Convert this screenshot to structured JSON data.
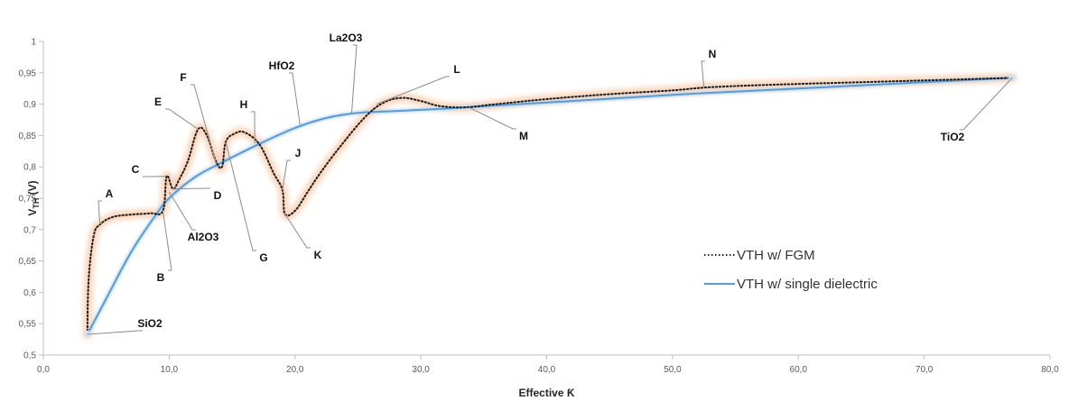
{
  "chart_data": {
    "type": "line",
    "title": "",
    "xlabel": "Effective Ƙ",
    "ylabel_main": "V",
    "ylabel_sub": "TH",
    "ylabel_unit": " (V)",
    "xlim": [
      0,
      80
    ],
    "ylim": [
      0.5,
      1
    ],
    "x_ticks": [
      "0,0",
      "10,0",
      "20,0",
      "30,0",
      "40,0",
      "50,0",
      "60,0",
      "70,0",
      "80,0"
    ],
    "y_ticks": [
      "0,5",
      "0,55",
      "0,6",
      "0,65",
      "0,7",
      "0,75",
      "0,8",
      "0,85",
      "0,9",
      "0,95",
      "1"
    ],
    "grid": false,
    "legend_position": "right",
    "series": [
      {
        "name": "VTH w/ FGM",
        "color": "#1a1a1a",
        "dash": "dotted",
        "glow": "#f5b183",
        "x": [
          3.5,
          3.6,
          4.0,
          4.5,
          5.5,
          7.0,
          8.5,
          9.5,
          9.8,
          10.3,
          10.8,
          11.5,
          12.3,
          13.0,
          13.7,
          14.2,
          14.5,
          15.2,
          16.0,
          17.2,
          18.3,
          19.0,
          19.2,
          20.0,
          21.0,
          22.0,
          23.5,
          25.5,
          27.0,
          28.5,
          30.0,
          31.5,
          33.5,
          36.0,
          40.0,
          45.0,
          50.0,
          53.0,
          58.0,
          65.0,
          72.0,
          77.0
        ],
        "y": [
          0.533,
          0.62,
          0.69,
          0.708,
          0.72,
          0.724,
          0.726,
          0.73,
          0.785,
          0.765,
          0.78,
          0.81,
          0.86,
          0.85,
          0.81,
          0.8,
          0.84,
          0.853,
          0.855,
          0.835,
          0.79,
          0.763,
          0.725,
          0.73,
          0.76,
          0.79,
          0.83,
          0.878,
          0.902,
          0.91,
          0.905,
          0.897,
          0.895,
          0.9,
          0.908,
          0.916,
          0.922,
          0.927,
          0.931,
          0.935,
          0.939,
          0.942
        ]
      },
      {
        "name": "VTH w/ single dielectric",
        "color": "#5b9bd5",
        "dash": "solid",
        "x": [
          3.5,
          5.0,
          7.0,
          9.0,
          10.0,
          12.0,
          14.0,
          17.0,
          20.0,
          22.5,
          25.0,
          28.0,
          32.0,
          36.0,
          42.0,
          50.0,
          60.0,
          70.0,
          77.0
        ],
        "y": [
          0.533,
          0.59,
          0.665,
          0.725,
          0.75,
          0.783,
          0.805,
          0.835,
          0.862,
          0.878,
          0.886,
          0.889,
          0.893,
          0.898,
          0.905,
          0.915,
          0.925,
          0.935,
          0.942
        ]
      }
    ],
    "annotations": [
      {
        "text": "A",
        "x": 4.5,
        "y": 0.708
      },
      {
        "text": "B",
        "x": 9.5,
        "y": 0.73
      },
      {
        "text": "C",
        "x": 9.8,
        "y": 0.785
      },
      {
        "text": "D",
        "x": 10.3,
        "y": 0.765
      },
      {
        "text": "E",
        "x": 12.3,
        "y": 0.86
      },
      {
        "text": "F",
        "x": 13.8,
        "y": 0.8
      },
      {
        "text": "G",
        "x": 14.5,
        "y": 0.84
      },
      {
        "text": "H",
        "x": 16.8,
        "y": 0.838
      },
      {
        "text": "J",
        "x": 19.0,
        "y": 0.763
      },
      {
        "text": "K",
        "x": 19.2,
        "y": 0.725
      },
      {
        "text": "L",
        "x": 26.5,
        "y": 0.9
      },
      {
        "text": "M",
        "x": 33.8,
        "y": 0.895
      },
      {
        "text": "N",
        "x": 52.5,
        "y": 0.927
      },
      {
        "text": "SiO2",
        "x": 3.5,
        "y": 0.533
      },
      {
        "text": "Al2O3",
        "x": 10.0,
        "y": 0.76
      },
      {
        "text": "HfO2",
        "x": 20.4,
        "y": 0.867
      },
      {
        "text": "La2O3",
        "x": 24.5,
        "y": 0.886
      },
      {
        "text": "TiO2",
        "x": 77.0,
        "y": 0.942
      }
    ]
  }
}
